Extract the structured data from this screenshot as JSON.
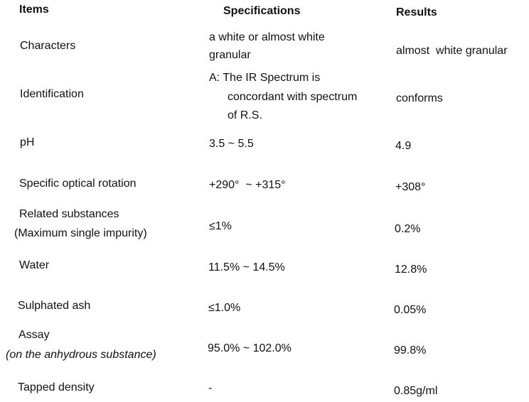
{
  "header": {
    "items": "Items",
    "specifications": "Specifications",
    "results": "Results"
  },
  "rows": [
    {
      "item": "Characters",
      "spec_lines": [
        "a white or almost white",
        "granular"
      ],
      "result": "almost  white granular"
    },
    {
      "item": "Identification",
      "spec_lines": [
        "A: The IR Spectrum is",
        "concordant with spectrum",
        "of R.S."
      ],
      "result": "conforms"
    },
    {
      "item": "pH",
      "spec_lines": [
        "3.5 ~ 5.5"
      ],
      "result": "4.9"
    },
    {
      "item": "Specific optical rotation",
      "spec_lines": [
        "+290°  ~ +315°"
      ],
      "result": "+308°"
    },
    {
      "item_lines": [
        "Related substances",
        "(Maximum single impurity)"
      ],
      "spec_lines": [
        "≤1%"
      ],
      "result": "0.2%"
    },
    {
      "item": "Water",
      "spec_lines": [
        "11.5% ~ 14.5%"
      ],
      "result": "12.8%"
    },
    {
      "item": "Sulphated ash",
      "spec_lines": [
        "≤1.0%"
      ],
      "result": "0.05%"
    },
    {
      "item_lines": [
        "Assay",
        "(on the anhydrous substance)"
      ],
      "spec_lines": [
        "95.0% ~ 102.0%"
      ],
      "result": "99.8%"
    },
    {
      "item": "Tapped density",
      "spec_lines": [
        "-"
      ],
      "result": "0.85g/ml"
    }
  ]
}
